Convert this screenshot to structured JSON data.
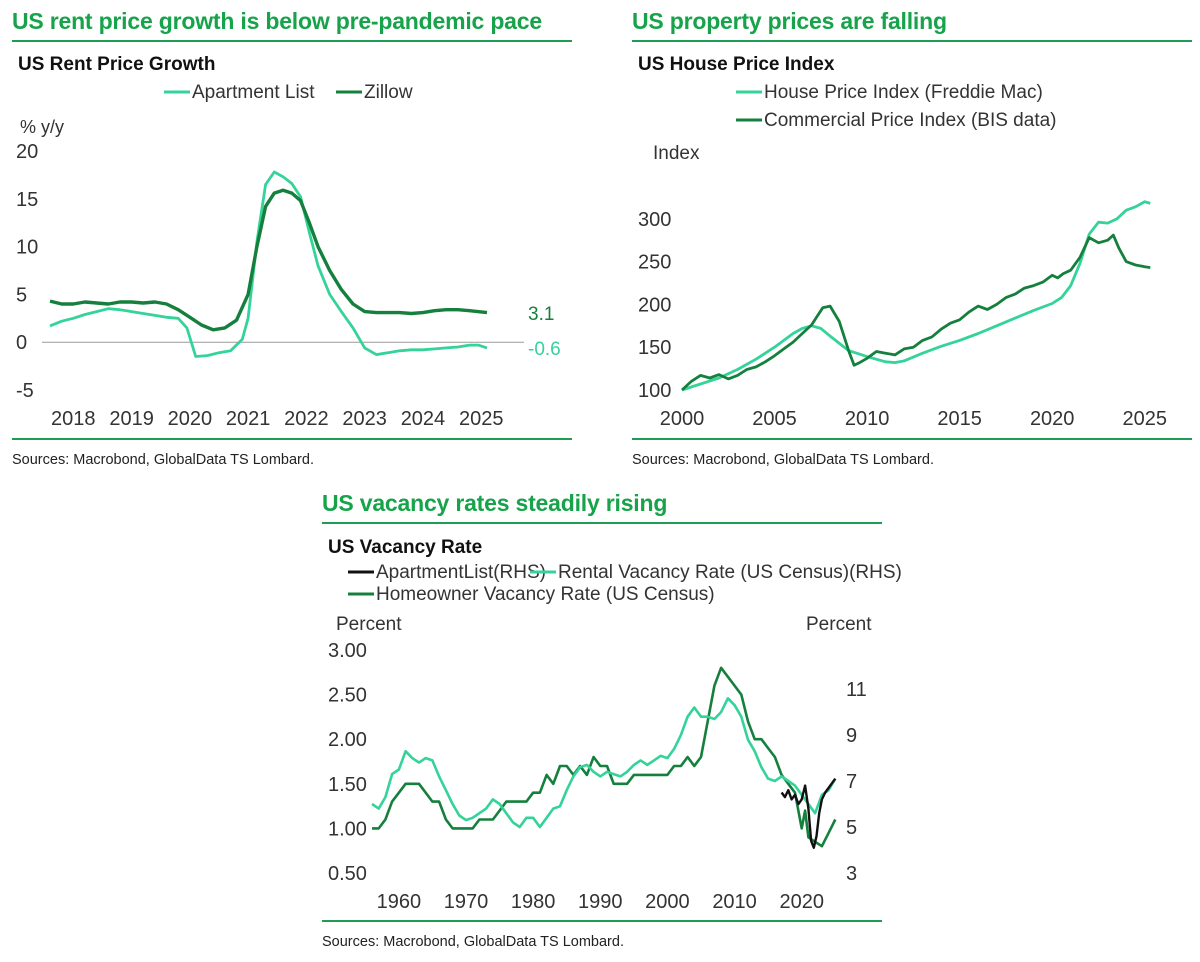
{
  "colors": {
    "heading": "#16a34a",
    "rule": "#1f9d55",
    "light_green": "#34d399",
    "dark_green": "#15803d",
    "black": "#111111",
    "axis_text": "#333333",
    "zero_line": "#9a9a9a"
  },
  "panels": {
    "rent": {
      "heading": "US rent price growth is below pre-pandemic pace",
      "subtitle": "US Rent Price Growth",
      "source": "Sources: Macrobond, GlobalData TS Lombard."
    },
    "house": {
      "heading": "US property prices are falling",
      "subtitle": "US House Price Index",
      "source": "Sources: Macrobond, GlobalData TS Lombard."
    },
    "vacancy": {
      "heading": "US vacancy rates steadily rising",
      "subtitle": "US Vacancy Rate",
      "source": "Sources: Macrobond, GlobalData TS Lombard."
    }
  },
  "chart_data": [
    {
      "id": "rent",
      "type": "line",
      "title": "US Rent Price Growth",
      "ylabel": "% y/y",
      "xlim": [
        2017.6,
        2025.7
      ],
      "ylim": [
        -5,
        20
      ],
      "yticks": [
        "20",
        "15",
        "10",
        "5",
        "0",
        "-5"
      ],
      "yticks_values": [
        20,
        15,
        10,
        5,
        0,
        -5
      ],
      "xticks": [
        "2018",
        "2019",
        "2020",
        "2021",
        "2022",
        "2023",
        "2024",
        "2025"
      ],
      "xticks_values": [
        2018,
        2019,
        2020,
        2021,
        2022,
        2023,
        2024,
        2025
      ],
      "series": [
        {
          "name": "Apartment List",
          "color_key": "light_green",
          "end_label": "-0.6",
          "x": [
            2017.6,
            2017.8,
            2018.0,
            2018.2,
            2018.4,
            2018.6,
            2018.8,
            2019.0,
            2019.2,
            2019.4,
            2019.6,
            2019.8,
            2019.95,
            2020.1,
            2020.3,
            2020.5,
            2020.7,
            2020.9,
            2021.0,
            2021.15,
            2021.3,
            2021.45,
            2021.6,
            2021.75,
            2021.9,
            2022.05,
            2022.2,
            2022.4,
            2022.6,
            2022.8,
            2023.0,
            2023.2,
            2023.4,
            2023.6,
            2023.8,
            2024.0,
            2024.2,
            2024.4,
            2024.6,
            2024.8,
            2024.95,
            2025.1
          ],
          "y": [
            1.7,
            2.2,
            2.5,
            2.9,
            3.2,
            3.5,
            3.4,
            3.2,
            3.0,
            2.8,
            2.6,
            2.5,
            1.5,
            -1.5,
            -1.4,
            -1.1,
            -0.9,
            0.3,
            2.5,
            10.5,
            16.5,
            17.8,
            17.3,
            16.6,
            15.2,
            11.5,
            8.0,
            5.0,
            3.2,
            1.5,
            -0.6,
            -1.3,
            -1.1,
            -0.9,
            -0.8,
            -0.8,
            -0.7,
            -0.6,
            -0.5,
            -0.3,
            -0.3,
            -0.6
          ]
        },
        {
          "name": "Zillow",
          "color_key": "dark_green",
          "end_label": "3.1",
          "x": [
            2017.6,
            2017.8,
            2018.0,
            2018.2,
            2018.4,
            2018.6,
            2018.8,
            2019.0,
            2019.2,
            2019.4,
            2019.6,
            2019.8,
            2020.0,
            2020.2,
            2020.4,
            2020.6,
            2020.8,
            2021.0,
            2021.15,
            2021.3,
            2021.45,
            2021.6,
            2021.75,
            2021.9,
            2022.05,
            2022.2,
            2022.4,
            2022.6,
            2022.8,
            2023.0,
            2023.2,
            2023.4,
            2023.6,
            2023.8,
            2024.0,
            2024.2,
            2024.4,
            2024.6,
            2024.8,
            2025.1
          ],
          "y": [
            4.3,
            4.0,
            4.0,
            4.2,
            4.1,
            4.0,
            4.2,
            4.2,
            4.1,
            4.2,
            4.0,
            3.4,
            2.6,
            1.8,
            1.3,
            1.5,
            2.3,
            5.0,
            10.0,
            14.2,
            15.6,
            15.9,
            15.6,
            14.8,
            12.5,
            10.0,
            7.5,
            5.5,
            4.0,
            3.2,
            3.1,
            3.1,
            3.1,
            3.0,
            3.1,
            3.3,
            3.4,
            3.4,
            3.3,
            3.1
          ]
        }
      ]
    },
    {
      "id": "house",
      "type": "line",
      "title": "US House Price Index",
      "ylabel": "Index",
      "xlim": [
        2000,
        2025.5
      ],
      "ylim": [
        100,
        350
      ],
      "yticks": [
        "300",
        "250",
        "200",
        "150",
        "100"
      ],
      "yticks_values": [
        300,
        250,
        200,
        150,
        100
      ],
      "xticks": [
        "2000",
        "2005",
        "2010",
        "2015",
        "2020",
        "2025"
      ],
      "xticks_values": [
        2000,
        2005,
        2010,
        2015,
        2020,
        2025
      ],
      "series": [
        {
          "name": "House Price Index (Freddie Mac)",
          "color_key": "light_green",
          "x": [
            2000,
            2001,
            2002,
            2003,
            2004,
            2005,
            2006,
            2006.5,
            2007,
            2007.5,
            2008,
            2009,
            2010,
            2011,
            2011.5,
            2012,
            2013,
            2014,
            2015,
            2016,
            2017,
            2018,
            2019,
            2020,
            2020.5,
            2021,
            2021.5,
            2022,
            2022.5,
            2023,
            2023.5,
            2024,
            2024.5,
            2025,
            2025.3
          ],
          "y": [
            100,
            107,
            114,
            124,
            136,
            150,
            166,
            172,
            175,
            172,
            163,
            146,
            139,
            133,
            132,
            134,
            143,
            151,
            158,
            166,
            175,
            184,
            193,
            201,
            208,
            222,
            248,
            282,
            296,
            295,
            300,
            310,
            314,
            320,
            318
          ]
        },
        {
          "name": "Commercial Price Index (BIS data)",
          "color_key": "dark_green",
          "x": [
            2000,
            2000.5,
            2001,
            2001.5,
            2002,
            2002.5,
            2003,
            2003.5,
            2004,
            2004.5,
            2005,
            2005.5,
            2006,
            2006.5,
            2007,
            2007.3,
            2007.6,
            2008,
            2008.5,
            2009,
            2009.3,
            2009.6,
            2010,
            2010.5,
            2011,
            2011.5,
            2012,
            2012.5,
            2013,
            2013.5,
            2014,
            2014.5,
            2015,
            2015.5,
            2016,
            2016.5,
            2017,
            2017.5,
            2018,
            2018.5,
            2019,
            2019.5,
            2020,
            2020.3,
            2020.6,
            2021,
            2021.5,
            2022,
            2022.5,
            2023,
            2023.3,
            2023.6,
            2024,
            2024.5,
            2025,
            2025.3
          ],
          "y": [
            100,
            110,
            117,
            114,
            118,
            113,
            117,
            124,
            127,
            133,
            140,
            148,
            156,
            166,
            176,
            186,
            196,
            198,
            180,
            146,
            129,
            132,
            137,
            145,
            143,
            141,
            148,
            150,
            158,
            162,
            171,
            178,
            182,
            191,
            198,
            194,
            200,
            208,
            212,
            219,
            222,
            226,
            234,
            231,
            236,
            240,
            255,
            278,
            272,
            275,
            281,
            266,
            250,
            246,
            244,
            243
          ]
        }
      ]
    },
    {
      "id": "vacancy",
      "type": "line",
      "title": "US Vacancy Rate",
      "ylabel_left": "Percent",
      "ylabel_right": "Percent",
      "xlim": [
        1956,
        2026
      ],
      "ylim_left": [
        0.5,
        3.0
      ],
      "ylim_right": [
        3,
        12.7
      ],
      "yticks_left": [
        "3.00",
        "2.50",
        "2.00",
        "1.50",
        "1.00",
        "0.50"
      ],
      "yticks_left_values": [
        3.0,
        2.5,
        2.0,
        1.5,
        1.0,
        0.5
      ],
      "yticks_right": [
        "11",
        "9",
        "7",
        "5",
        "3"
      ],
      "yticks_right_values": [
        11,
        9,
        7,
        5,
        3
      ],
      "xticks": [
        "1960",
        "1970",
        "1980",
        "1990",
        "2000",
        "2010",
        "2020"
      ],
      "xticks_values": [
        1960,
        1970,
        1980,
        1990,
        2000,
        2010,
        2020
      ],
      "series": [
        {
          "name": "ApartmentList(RHS)",
          "axis": "right",
          "color_key": "black",
          "x": [
            2017,
            2017.5,
            2018,
            2018.5,
            2019,
            2019.5,
            2020,
            2020.5,
            2021,
            2021.4,
            2021.8,
            2022.2,
            2022.6,
            2023,
            2023.5,
            2024,
            2024.5,
            2025
          ],
          "y": [
            6.5,
            6.3,
            6.6,
            6.2,
            6.4,
            6.0,
            6.2,
            6.8,
            5.8,
            4.4,
            4.1,
            4.6,
            5.6,
            6.2,
            6.5,
            6.7,
            6.9,
            7.1
          ]
        },
        {
          "name": "Rental Vacancy Rate (US Census)(RHS)",
          "axis": "right",
          "color_key": "light_green",
          "x": [
            1956,
            1957,
            1958,
            1959,
            1960,
            1961,
            1962,
            1963,
            1964,
            1965,
            1966,
            1967,
            1968,
            1969,
            1970,
            1971,
            1972,
            1973,
            1974,
            1975,
            1976,
            1977,
            1978,
            1979,
            1980,
            1981,
            1982,
            1983,
            1984,
            1985,
            1986,
            1987,
            1988,
            1989,
            1990,
            1991,
            1992,
            1993,
            1994,
            1995,
            1996,
            1997,
            1998,
            1999,
            2000,
            2001,
            2002,
            2003,
            2004,
            2005,
            2006,
            2007,
            2008,
            2009,
            2010,
            2011,
            2012,
            2013,
            2014,
            2015,
            2016,
            2017,
            2018,
            2019,
            2020,
            2021,
            2022,
            2023,
            2024,
            2025
          ],
          "y": [
            6.0,
            5.8,
            6.3,
            7.3,
            7.5,
            8.3,
            8.0,
            7.8,
            8.0,
            7.9,
            7.2,
            6.6,
            6.0,
            5.5,
            5.3,
            5.4,
            5.6,
            5.8,
            6.2,
            6.0,
            5.6,
            5.2,
            5.0,
            5.4,
            5.4,
            5.0,
            5.4,
            5.8,
            5.9,
            6.6,
            7.2,
            7.6,
            7.7,
            7.4,
            7.2,
            7.4,
            7.3,
            7.2,
            7.4,
            7.7,
            7.9,
            7.7,
            7.9,
            8.1,
            8.0,
            8.4,
            9.0,
            9.8,
            10.2,
            9.8,
            9.8,
            9.7,
            10.0,
            10.6,
            10.3,
            9.8,
            8.8,
            8.3,
            7.6,
            7.1,
            7.0,
            7.2,
            7.0,
            6.8,
            6.4,
            6.0,
            5.6,
            6.4,
            6.6,
            7.1
          ]
        },
        {
          "name": "Homeowner Vacancy Rate (US Census)",
          "axis": "left",
          "color_key": "dark_green",
          "x": [
            1956,
            1957,
            1958,
            1959,
            1960,
            1961,
            1962,
            1963,
            1964,
            1965,
            1966,
            1967,
            1968,
            1969,
            1970,
            1971,
            1972,
            1973,
            1974,
            1975,
            1976,
            1977,
            1978,
            1979,
            1980,
            1981,
            1982,
            1983,
            1984,
            1985,
            1986,
            1987,
            1988,
            1989,
            1990,
            1991,
            1992,
            1993,
            1994,
            1995,
            1996,
            1997,
            1998,
            1999,
            2000,
            2001,
            2002,
            2003,
            2004,
            2005,
            2006,
            2007,
            2008,
            2009,
            2010,
            2011,
            2012,
            2013,
            2014,
            2015,
            2016,
            2017,
            2018,
            2019,
            2020,
            2020.5,
            2021,
            2022,
            2023,
            2024,
            2025
          ],
          "y": [
            1.0,
            1.0,
            1.1,
            1.3,
            1.4,
            1.5,
            1.5,
            1.5,
            1.4,
            1.3,
            1.3,
            1.1,
            1.0,
            1.0,
            1.0,
            1.0,
            1.1,
            1.1,
            1.1,
            1.2,
            1.3,
            1.3,
            1.3,
            1.3,
            1.4,
            1.4,
            1.6,
            1.5,
            1.7,
            1.7,
            1.6,
            1.7,
            1.6,
            1.8,
            1.7,
            1.7,
            1.5,
            1.5,
            1.5,
            1.6,
            1.6,
            1.6,
            1.6,
            1.6,
            1.6,
            1.7,
            1.7,
            1.8,
            1.7,
            1.8,
            2.2,
            2.6,
            2.8,
            2.7,
            2.6,
            2.5,
            2.2,
            2.0,
            2.0,
            1.9,
            1.8,
            1.6,
            1.5,
            1.4,
            1.0,
            1.2,
            0.9,
            0.85,
            0.8,
            0.95,
            1.1
          ]
        }
      ]
    }
  ]
}
